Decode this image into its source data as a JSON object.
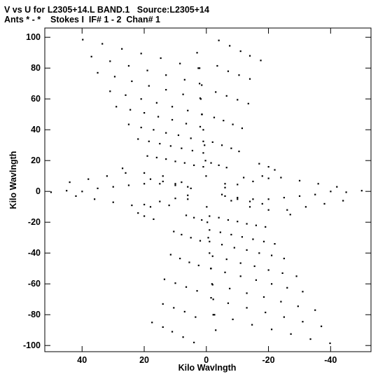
{
  "chart_data": {
    "type": "scatter",
    "title": "V vs U for L2305+14.L BAND.1   Source:L2305+14",
    "subtitle": "Ants * - *    Stokes I  IF# 1 - 2  Chan# 1",
    "xlabel": "Kilo Wavlngth",
    "ylabel": "Kilo Wavlngth",
    "xlim": [
      52,
      -53
    ],
    "ylim": [
      -104,
      106
    ],
    "x_reversed": true,
    "grid": false,
    "xticks": [
      40,
      20,
      0,
      -20,
      -40
    ],
    "xtick_labels": [
      "40",
      "20",
      "0",
      "-20",
      "-40"
    ],
    "yticks": [
      100,
      80,
      60,
      40,
      20,
      0,
      -20,
      -40,
      -60,
      -80,
      -100
    ],
    "ytick_labels": [
      "100",
      "80",
      "60",
      "40",
      "20",
      "0",
      "-20",
      "-40",
      "-60",
      "-80",
      "-100"
    ],
    "series": [
      {
        "values": [
          [
            39.8,
            98.5
          ],
          [
            33.5,
            95.8
          ],
          [
            27.2,
            92.5
          ],
          [
            21.0,
            89.5
          ],
          [
            14.7,
            86.5
          ],
          [
            8.5,
            83.0
          ],
          [
            2.2,
            80.0
          ],
          [
            37.0,
            87.5
          ],
          [
            31.0,
            84.5
          ],
          [
            25.0,
            81.5
          ],
          [
            19.0,
            78.5
          ],
          [
            13.0,
            75.5
          ],
          [
            7.0,
            72.5
          ],
          [
            1.5,
            69.0
          ],
          [
            35.0,
            77.0
          ],
          [
            29.5,
            74.5
          ],
          [
            24.0,
            71.5
          ],
          [
            18.5,
            68.5
          ],
          [
            13.0,
            66.0
          ],
          [
            7.5,
            63.0
          ],
          [
            2.0,
            60.5
          ],
          [
            31.0,
            65.0
          ],
          [
            26.0,
            62.5
          ],
          [
            21.0,
            60.0
          ],
          [
            16.0,
            57.5
          ],
          [
            11.0,
            55.0
          ],
          [
            6.0,
            52.5
          ],
          [
            1.5,
            50.0
          ],
          [
            29.0,
            55.0
          ],
          [
            24.5,
            53.0
          ],
          [
            20.0,
            51.0
          ],
          [
            15.5,
            48.5
          ],
          [
            11.0,
            46.5
          ],
          [
            6.5,
            44.0
          ],
          [
            2.0,
            42.0
          ],
          [
            25.0,
            43.5
          ],
          [
            21.0,
            41.5
          ],
          [
            17.0,
            40.0
          ],
          [
            13.0,
            38.0
          ],
          [
            9.0,
            36.5
          ],
          [
            5.0,
            34.5
          ],
          [
            1.0,
            32.5
          ],
          [
            22.0,
            34.0
          ],
          [
            18.5,
            32.5
          ],
          [
            15.0,
            31.0
          ],
          [
            11.5,
            29.5
          ],
          [
            8.0,
            28.0
          ],
          [
            4.5,
            26.5
          ],
          [
            1.0,
            25.0
          ],
          [
            19.0,
            23.0
          ],
          [
            16.0,
            22.0
          ],
          [
            13.0,
            21.0
          ],
          [
            10.0,
            19.5
          ],
          [
            7.0,
            18.5
          ],
          [
            4.0,
            17.0
          ],
          [
            1.0,
            16.0
          ],
          [
            -4.0,
            98.0
          ],
          [
            -7.5,
            94.5
          ],
          [
            -11.0,
            91.0
          ],
          [
            -14.0,
            88.0
          ],
          [
            -17.5,
            85.0
          ],
          [
            -3.5,
            81.5
          ],
          [
            -7.0,
            78.0
          ],
          [
            -10.5,
            75.5
          ],
          [
            -14.0,
            73.0
          ],
          [
            -3.0,
            64.5
          ],
          [
            -6.5,
            62.0
          ],
          [
            -10.0,
            59.5
          ],
          [
            -13.5,
            57.0
          ],
          [
            -2.5,
            48.0
          ],
          [
            -5.5,
            46.0
          ],
          [
            -8.5,
            43.5
          ],
          [
            -11.5,
            41.0
          ],
          [
            -2.0,
            32.0
          ],
          [
            -5.0,
            30.0
          ],
          [
            -8.0,
            28.0
          ],
          [
            -10.5,
            26.0
          ],
          [
            -1.5,
            18.5
          ],
          [
            -4.0,
            17.0
          ],
          [
            -6.5,
            15.5
          ],
          [
            -39.8,
            -98.5
          ],
          [
            -33.5,
            -95.8
          ],
          [
            -27.2,
            -92.5
          ],
          [
            -21.0,
            -89.5
          ],
          [
            -14.7,
            -86.5
          ],
          [
            -8.5,
            -83.0
          ],
          [
            -2.2,
            -80.0
          ],
          [
            -37.0,
            -87.5
          ],
          [
            -31.0,
            -84.5
          ],
          [
            -25.0,
            -81.5
          ],
          [
            -19.0,
            -78.5
          ],
          [
            -13.0,
            -75.5
          ],
          [
            -7.0,
            -72.5
          ],
          [
            -1.5,
            -69.0
          ],
          [
            -35.0,
            -77.0
          ],
          [
            -29.5,
            -74.5
          ],
          [
            -24.0,
            -71.5
          ],
          [
            -18.5,
            -68.5
          ],
          [
            -13.0,
            -66.0
          ],
          [
            -7.5,
            -63.0
          ],
          [
            -2.0,
            -60.5
          ],
          [
            -31.0,
            -65.0
          ],
          [
            -26.0,
            -62.5
          ],
          [
            -21.0,
            -60.0
          ],
          [
            -16.0,
            -57.5
          ],
          [
            -11.0,
            -55.0
          ],
          [
            -6.0,
            -52.5
          ],
          [
            -1.5,
            -50.0
          ],
          [
            -29.0,
            -55.0
          ],
          [
            -24.5,
            -53.0
          ],
          [
            -20.0,
            -51.0
          ],
          [
            -15.5,
            -48.5
          ],
          [
            -11.0,
            -46.5
          ],
          [
            -6.5,
            -44.0
          ],
          [
            -2.0,
            -42.0
          ],
          [
            -25.0,
            -43.5
          ],
          [
            -21.0,
            -41.5
          ],
          [
            -17.0,
            -40.0
          ],
          [
            -13.0,
            -38.0
          ],
          [
            -9.0,
            -36.5
          ],
          [
            -5.0,
            -34.5
          ],
          [
            -1.0,
            -32.5
          ],
          [
            -22.0,
            -34.0
          ],
          [
            -18.5,
            -32.5
          ],
          [
            -15.0,
            -31.0
          ],
          [
            -11.5,
            -29.5
          ],
          [
            -8.0,
            -28.0
          ],
          [
            -4.5,
            -26.5
          ],
          [
            -1.0,
            -25.0
          ],
          [
            -19.0,
            -23.0
          ],
          [
            -16.0,
            -22.0
          ],
          [
            -13.0,
            -21.0
          ],
          [
            -10.0,
            -19.5
          ],
          [
            -7.0,
            -18.5
          ],
          [
            -4.0,
            -17.0
          ],
          [
            -1.0,
            -16.0
          ],
          [
            4.0,
            -98.0
          ],
          [
            7.5,
            -94.5
          ],
          [
            11.0,
            -91.0
          ],
          [
            14.0,
            -88.0
          ],
          [
            17.5,
            -85.0
          ],
          [
            3.5,
            -81.5
          ],
          [
            7.0,
            -78.0
          ],
          [
            10.5,
            -75.5
          ],
          [
            14.0,
            -73.0
          ],
          [
            3.0,
            -64.5
          ],
          [
            6.5,
            -62.0
          ],
          [
            10.0,
            -59.5
          ],
          [
            13.5,
            -57.0
          ],
          [
            2.5,
            -48.0
          ],
          [
            5.5,
            -46.0
          ],
          [
            8.5,
            -43.5
          ],
          [
            11.5,
            -41.0
          ],
          [
            2.0,
            -32.0
          ],
          [
            5.0,
            -30.0
          ],
          [
            8.0,
            -28.0
          ],
          [
            10.5,
            -26.0
          ],
          [
            1.5,
            -18.5
          ],
          [
            4.0,
            -17.0
          ],
          [
            6.5,
            -15.5
          ],
          [
            3.0,
            90.0
          ],
          [
            2.6,
            80.0
          ],
          [
            2.2,
            70.0
          ],
          [
            1.8,
            60.0
          ],
          [
            1.4,
            50.0
          ],
          [
            1.0,
            40.0
          ],
          [
            0.6,
            30.0
          ],
          [
            0.3,
            20.0
          ],
          [
            0.1,
            10.0
          ],
          [
            -3.0,
            -90.0
          ],
          [
            -2.6,
            -80.0
          ],
          [
            -2.2,
            -70.0
          ],
          [
            -1.8,
            -60.0
          ],
          [
            -1.4,
            -50.0
          ],
          [
            -1.0,
            -40.0
          ],
          [
            -0.6,
            -30.0
          ],
          [
            -0.3,
            -20.0
          ],
          [
            -0.1,
            -10.0
          ],
          [
            50.0,
            -0.5
          ],
          [
            45.0,
            0.5
          ],
          [
            40.0,
            0.0
          ],
          [
            35.0,
            2.0
          ],
          [
            30.0,
            3.0
          ],
          [
            25.0,
            4.0
          ],
          [
            20.0,
            5.0
          ],
          [
            15.0,
            5.0
          ],
          [
            10.0,
            4.0
          ],
          [
            5.0,
            2.0
          ],
          [
            44.0,
            6.0
          ],
          [
            38.0,
            8.0
          ],
          [
            32.0,
            10.0
          ],
          [
            26.0,
            12.0
          ],
          [
            20.0,
            12.0
          ],
          [
            14.0,
            10.0
          ],
          [
            8.0,
            6.0
          ],
          [
            42.0,
            -3.0
          ],
          [
            36.0,
            -5.0
          ],
          [
            30.0,
            -7.0
          ],
          [
            24.0,
            -9.0
          ],
          [
            18.0,
            -10.0
          ],
          [
            12.0,
            -9.0
          ],
          [
            6.0,
            -5.0
          ],
          [
            27.0,
            15.0
          ],
          [
            22.0,
            -14.0
          ],
          [
            17.0,
            -18.0
          ],
          [
            20.0,
            -16.0
          ],
          [
            -50.0,
            0.5
          ],
          [
            -45.0,
            -0.5
          ],
          [
            -40.0,
            0.0
          ],
          [
            -35.0,
            -2.0
          ],
          [
            -30.0,
            -3.0
          ],
          [
            -25.0,
            -4.0
          ],
          [
            -20.0,
            -5.0
          ],
          [
            -15.0,
            -5.0
          ],
          [
            -10.0,
            -4.0
          ],
          [
            -5.0,
            -2.0
          ],
          [
            -44.0,
            -6.0
          ],
          [
            -38.0,
            -8.0
          ],
          [
            -32.0,
            -10.0
          ],
          [
            -26.0,
            -12.0
          ],
          [
            -20.0,
            -12.0
          ],
          [
            -14.0,
            -10.0
          ],
          [
            -8.0,
            -6.0
          ],
          [
            -42.0,
            3.0
          ],
          [
            -36.0,
            5.0
          ],
          [
            -30.0,
            7.0
          ],
          [
            -24.0,
            9.0
          ],
          [
            -18.0,
            10.0
          ],
          [
            -12.0,
            9.0
          ],
          [
            -6.0,
            5.0
          ],
          [
            -27.0,
            -15.0
          ],
          [
            -22.0,
            14.0
          ],
          [
            -17.0,
            18.0
          ],
          [
            -20.0,
            16.0
          ],
          [
            18.0,
            8.0
          ],
          [
            14.0,
            6.5
          ],
          [
            10.0,
            5.0
          ],
          [
            6.0,
            3.0
          ],
          [
            -18.0,
            -8.0
          ],
          [
            -14.0,
            -6.5
          ],
          [
            -10.0,
            -5.0
          ],
          [
            -6.0,
            -3.0
          ],
          [
            -20.0,
            8.5
          ],
          [
            -15.0,
            6.5
          ],
          [
            -10.0,
            4.5
          ],
          [
            -6.0,
            2.5
          ],
          [
            20.0,
            -8.5
          ],
          [
            15.0,
            -6.5
          ],
          [
            10.0,
            -4.5
          ],
          [
            6.0,
            -2.5
          ]
        ]
      }
    ]
  }
}
